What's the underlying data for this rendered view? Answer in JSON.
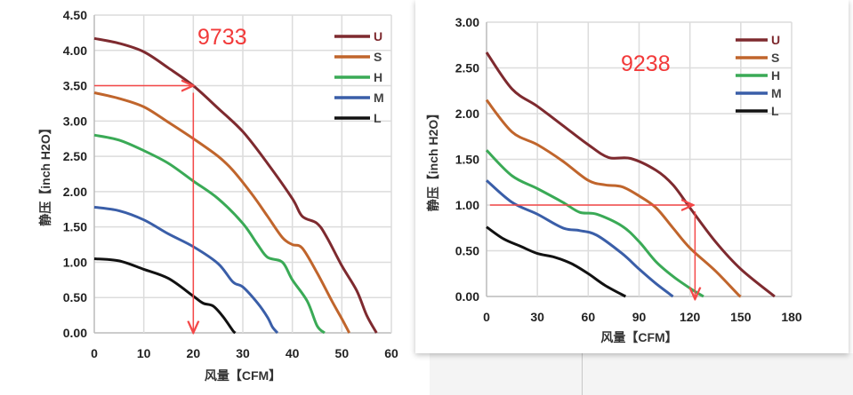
{
  "chart_data": [
    {
      "type": "line",
      "title": "9733",
      "xlabel": "风量【CFM】",
      "ylabel": "静压【inch H2O】",
      "xlim": [
        0,
        60
      ],
      "ylim": [
        0,
        4.5
      ],
      "xticks": [
        0,
        10,
        20,
        30,
        40,
        50,
        60
      ],
      "xtick_labels": [
        "0",
        "10",
        "20",
        "30",
        "40",
        "50",
        "60"
      ],
      "yticks": [
        0,
        0.5,
        1,
        1.5,
        2,
        2.5,
        3,
        3.5,
        4,
        4.5
      ],
      "ytick_labels": [
        "0.00",
        "0.50",
        "1.00",
        "1.50",
        "2.00",
        "2.50",
        "3.00",
        "3.50",
        "4.00",
        "4.50"
      ],
      "grid": true,
      "legend_position": "top-right",
      "series": [
        {
          "name": "U",
          "color": "#7e2a2f",
          "x": [
            0,
            5,
            10,
            15,
            20,
            25,
            30,
            35,
            40,
            42,
            45,
            47,
            50,
            53,
            55,
            57
          ],
          "y": [
            4.17,
            4.1,
            3.98,
            3.75,
            3.5,
            3.18,
            2.85,
            2.4,
            1.9,
            1.65,
            1.55,
            1.35,
            0.95,
            0.6,
            0.25,
            0
          ]
        },
        {
          "name": "S",
          "color": "#c0652c",
          "x": [
            0,
            5,
            10,
            15,
            20,
            25,
            28,
            32,
            35,
            38,
            40,
            42,
            45,
            48,
            50,
            51.5
          ],
          "y": [
            3.4,
            3.32,
            3.2,
            2.98,
            2.75,
            2.5,
            2.3,
            1.95,
            1.65,
            1.35,
            1.25,
            1.2,
            0.85,
            0.45,
            0.2,
            0
          ]
        },
        {
          "name": "H",
          "color": "#3aaa56",
          "x": [
            0,
            5,
            10,
            15,
            20,
            25,
            30,
            33,
            35,
            38,
            40,
            43,
            45,
            46.5
          ],
          "y": [
            2.8,
            2.73,
            2.58,
            2.4,
            2.15,
            1.9,
            1.55,
            1.25,
            1.07,
            1.0,
            0.75,
            0.45,
            0.1,
            0
          ]
        },
        {
          "name": "M",
          "color": "#3a5ea8",
          "x": [
            0,
            5,
            10,
            15,
            20,
            25,
            28,
            30,
            33,
            35,
            36,
            37
          ],
          "y": [
            1.78,
            1.73,
            1.6,
            1.4,
            1.22,
            0.98,
            0.72,
            0.65,
            0.42,
            0.22,
            0.08,
            0
          ]
        },
        {
          "name": "L",
          "color": "#111111",
          "x": [
            0,
            5,
            10,
            15,
            20,
            22,
            24,
            26,
            28,
            28.5
          ],
          "y": [
            1.05,
            1.02,
            0.9,
            0.77,
            0.52,
            0.42,
            0.38,
            0.23,
            0.03,
            0
          ]
        }
      ],
      "annotations": {
        "color": "#f44848",
        "h_arrow": {
          "x": [
            0,
            20
          ],
          "y": 3.5
        },
        "v_arrow": {
          "x": 20,
          "y": [
            3.4,
            0
          ]
        }
      }
    },
    {
      "type": "line",
      "title": "9238",
      "xlabel": "风量【CFM】",
      "ylabel": "静压【inch H2O】",
      "xlim": [
        0,
        180
      ],
      "ylim": [
        0,
        3
      ],
      "xticks": [
        0,
        30,
        60,
        90,
        120,
        150,
        180
      ],
      "xtick_labels": [
        "0",
        "30",
        "60",
        "90",
        "120",
        "150",
        "180"
      ],
      "yticks": [
        0,
        0.5,
        1,
        1.5,
        2,
        2.5,
        3
      ],
      "ytick_labels": [
        "0.00",
        "0.50",
        "1.00",
        "1.50",
        "2.00",
        "2.50",
        "3.00"
      ],
      "grid": true,
      "legend_position": "top-right",
      "series": [
        {
          "name": "U",
          "color": "#7e2a2f",
          "x": [
            0,
            15,
            30,
            45,
            60,
            72,
            85,
            100,
            110,
            120,
            135,
            150,
            170
          ],
          "y": [
            2.67,
            2.27,
            2.08,
            1.87,
            1.66,
            1.52,
            1.51,
            1.38,
            1.22,
            0.97,
            0.6,
            0.3,
            0
          ]
        },
        {
          "name": "S",
          "color": "#c0652c",
          "x": [
            0,
            15,
            30,
            45,
            60,
            70,
            80,
            90,
            100,
            110,
            120,
            135,
            148,
            150
          ],
          "y": [
            2.15,
            1.8,
            1.66,
            1.48,
            1.27,
            1.22,
            1.2,
            1.1,
            0.97,
            0.75,
            0.53,
            0.28,
            0.03,
            0
          ]
        },
        {
          "name": "H",
          "color": "#3aaa56",
          "x": [
            0,
            15,
            30,
            45,
            55,
            65,
            80,
            90,
            100,
            110,
            120,
            128
          ],
          "y": [
            1.6,
            1.32,
            1.18,
            1.03,
            0.92,
            0.9,
            0.77,
            0.6,
            0.38,
            0.22,
            0.09,
            0
          ]
        },
        {
          "name": "M",
          "color": "#3a5ea8",
          "x": [
            0,
            15,
            30,
            45,
            55,
            65,
            80,
            90,
            100,
            110
          ],
          "y": [
            1.27,
            1.03,
            0.9,
            0.75,
            0.72,
            0.67,
            0.47,
            0.3,
            0.14,
            0
          ]
        },
        {
          "name": "L",
          "color": "#111111",
          "x": [
            0,
            10,
            20,
            30,
            40,
            50,
            60,
            70,
            82
          ],
          "y": [
            0.76,
            0.63,
            0.55,
            0.47,
            0.43,
            0.36,
            0.25,
            0.12,
            0
          ]
        }
      ],
      "annotations": {
        "color": "#f44848",
        "h_arrow": {
          "x": [
            2,
            122
          ],
          "y": 1.0
        },
        "v_arrow": {
          "x": 123,
          "y": [
            0.93,
            -0.03
          ]
        }
      }
    }
  ]
}
